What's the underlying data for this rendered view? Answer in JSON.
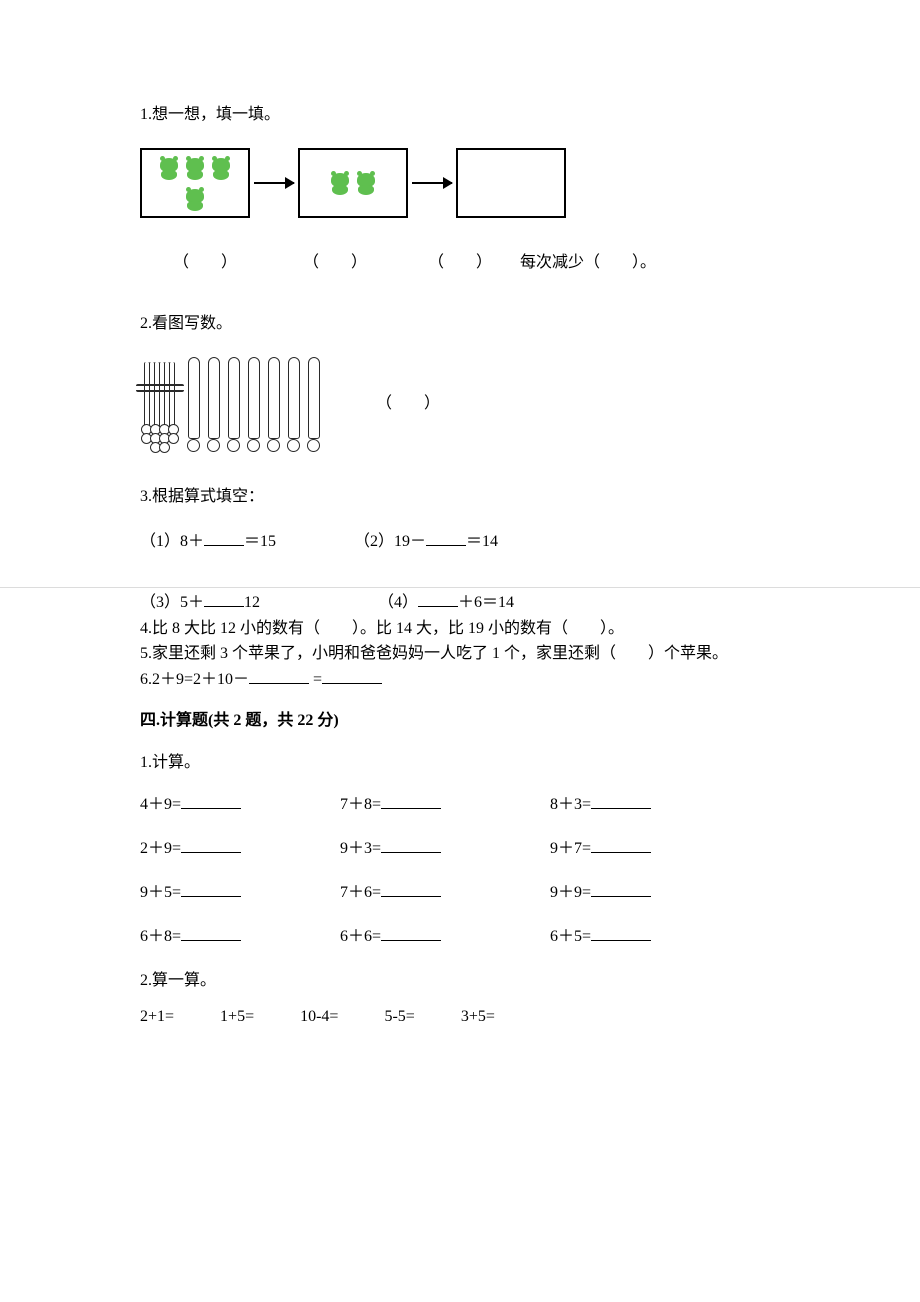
{
  "q1": {
    "title": "1.想一想，填一填。",
    "box1_frogs": 4,
    "box2_frogs": 2,
    "box3_frogs": 0,
    "blanks": [
      "（　　）",
      "（　　）",
      "（　　）"
    ],
    "tail": "每次减少（　　）。"
  },
  "q2": {
    "title": "2.看图写数。",
    "bundle_sticks": 6,
    "bundle_balls": 10,
    "loose_sticks": 7,
    "label": "（　　）"
  },
  "q3": {
    "title": "3.根据算式填空：",
    "line1_a": "（1）8＋",
    "line1_b": "＝15",
    "line1_c": "（2）19－",
    "line1_d": "＝14",
    "line2_a": "（3）5＋",
    "line2_b": "12",
    "line2_c": "（4）",
    "line2_d": "＋6＝14"
  },
  "q4": "4.比 8 大比 12 小的数有（　　）。比 14 大，比 19 小的数有（　　）。",
  "q5": "5.家里还剩 3 个苹果了，小明和爸爸妈妈一人吃了 1 个，家里还剩（　　）个苹果。",
  "q6_a": "6.2＋9=2＋10－",
  "q6_b": " =",
  "section4_title": "四.计算题(共 2 题，共 22 分)",
  "calc1": {
    "title": "1.计算。",
    "items": [
      "4＋9=",
      "7＋8=",
      "8＋3=",
      "2＋9=",
      "9＋3=",
      "9＋7=",
      "9＋5=",
      "7＋6=",
      " 9＋9=",
      "6＋8=",
      "6＋6=",
      "6＋5="
    ]
  },
  "calc2": {
    "title": "2.算一算。",
    "items": [
      "2+1=",
      "1+5=",
      "10-4=",
      "5-5=",
      "3+5="
    ]
  },
  "colors": {
    "text": "#000000",
    "bg": "#ffffff",
    "frog": "#5fbf4f",
    "divider": "#dcdcdc",
    "stick": "#2a2a2a"
  }
}
